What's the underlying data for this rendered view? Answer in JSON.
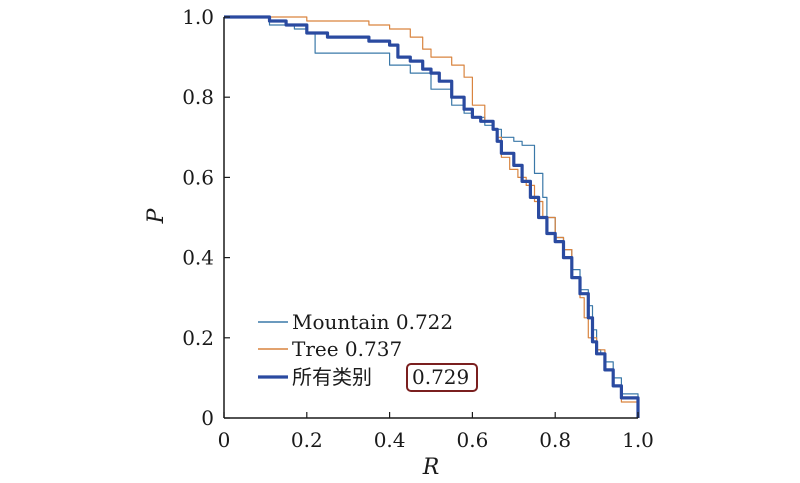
{
  "chart_data": {
    "type": "line",
    "xlabel": "R",
    "ylabel": "P",
    "xlim": [
      0,
      1.0
    ],
    "ylim": [
      0,
      1.0
    ],
    "x_ticks": [
      "0",
      "0.2",
      "0.4",
      "0.6",
      "0.8",
      "1.0"
    ],
    "y_ticks": [
      "0",
      "0.2",
      "0.4",
      "0.6",
      "0.8",
      "1.0"
    ],
    "grid": false,
    "legend_position": "bottom-left",
    "series": [
      {
        "name": "Mountain 0.722",
        "color": "#3a78a8",
        "style": "thin",
        "x": [
          0.0,
          0.1,
          0.11,
          0.11,
          0.17,
          0.17,
          0.2,
          0.22,
          0.22,
          0.3,
          0.4,
          0.4,
          0.45,
          0.5,
          0.55,
          0.58,
          0.6,
          0.63,
          0.65,
          0.67,
          0.7,
          0.72,
          0.75,
          0.77,
          0.78,
          0.8,
          0.82,
          0.84,
          0.86,
          0.88,
          0.89,
          0.9,
          0.91,
          0.92,
          0.94,
          0.96,
          1.0
        ],
        "y": [
          1.0,
          1.0,
          0.99,
          0.98,
          0.98,
          0.97,
          0.96,
          0.92,
          0.91,
          0.91,
          0.9,
          0.88,
          0.86,
          0.82,
          0.78,
          0.76,
          0.75,
          0.73,
          0.72,
          0.7,
          0.69,
          0.68,
          0.61,
          0.55,
          0.5,
          0.45,
          0.42,
          0.37,
          0.32,
          0.28,
          0.22,
          0.17,
          0.16,
          0.14,
          0.1,
          0.06,
          0.0
        ]
      },
      {
        "name": "Tree 0.737",
        "color": "#d9843f",
        "style": "thin",
        "x": [
          0.0,
          0.1,
          0.12,
          0.2,
          0.25,
          0.33,
          0.35,
          0.4,
          0.45,
          0.48,
          0.5,
          0.55,
          0.58,
          0.6,
          0.63,
          0.65,
          0.66,
          0.67,
          0.69,
          0.71,
          0.73,
          0.75,
          0.77,
          0.8,
          0.82,
          0.84,
          0.86,
          0.87,
          0.88,
          0.9,
          0.92,
          0.94,
          0.96,
          1.0
        ],
        "y": [
          1.0,
          1.0,
          1.0,
          0.99,
          0.99,
          0.99,
          0.98,
          0.97,
          0.95,
          0.92,
          0.9,
          0.88,
          0.85,
          0.78,
          0.74,
          0.72,
          0.7,
          0.65,
          0.62,
          0.6,
          0.58,
          0.54,
          0.5,
          0.45,
          0.42,
          0.35,
          0.3,
          0.25,
          0.2,
          0.17,
          0.12,
          0.08,
          0.04,
          0.0
        ]
      },
      {
        "name": "所有类别",
        "value_label": "0.729",
        "color": "#2a4aa0",
        "style": "thick",
        "x": [
          0.0,
          0.1,
          0.11,
          0.15,
          0.2,
          0.25,
          0.3,
          0.35,
          0.4,
          0.42,
          0.45,
          0.48,
          0.5,
          0.52,
          0.55,
          0.58,
          0.6,
          0.62,
          0.65,
          0.66,
          0.67,
          0.7,
          0.72,
          0.74,
          0.76,
          0.78,
          0.8,
          0.82,
          0.84,
          0.86,
          0.88,
          0.89,
          0.9,
          0.92,
          0.94,
          0.96,
          1.0
        ],
        "y": [
          1.0,
          1.0,
          0.99,
          0.98,
          0.96,
          0.95,
          0.95,
          0.94,
          0.93,
          0.9,
          0.89,
          0.87,
          0.86,
          0.84,
          0.8,
          0.77,
          0.75,
          0.74,
          0.72,
          0.69,
          0.66,
          0.63,
          0.59,
          0.55,
          0.5,
          0.46,
          0.44,
          0.4,
          0.35,
          0.31,
          0.25,
          0.19,
          0.16,
          0.12,
          0.08,
          0.05,
          0.0
        ]
      }
    ]
  }
}
